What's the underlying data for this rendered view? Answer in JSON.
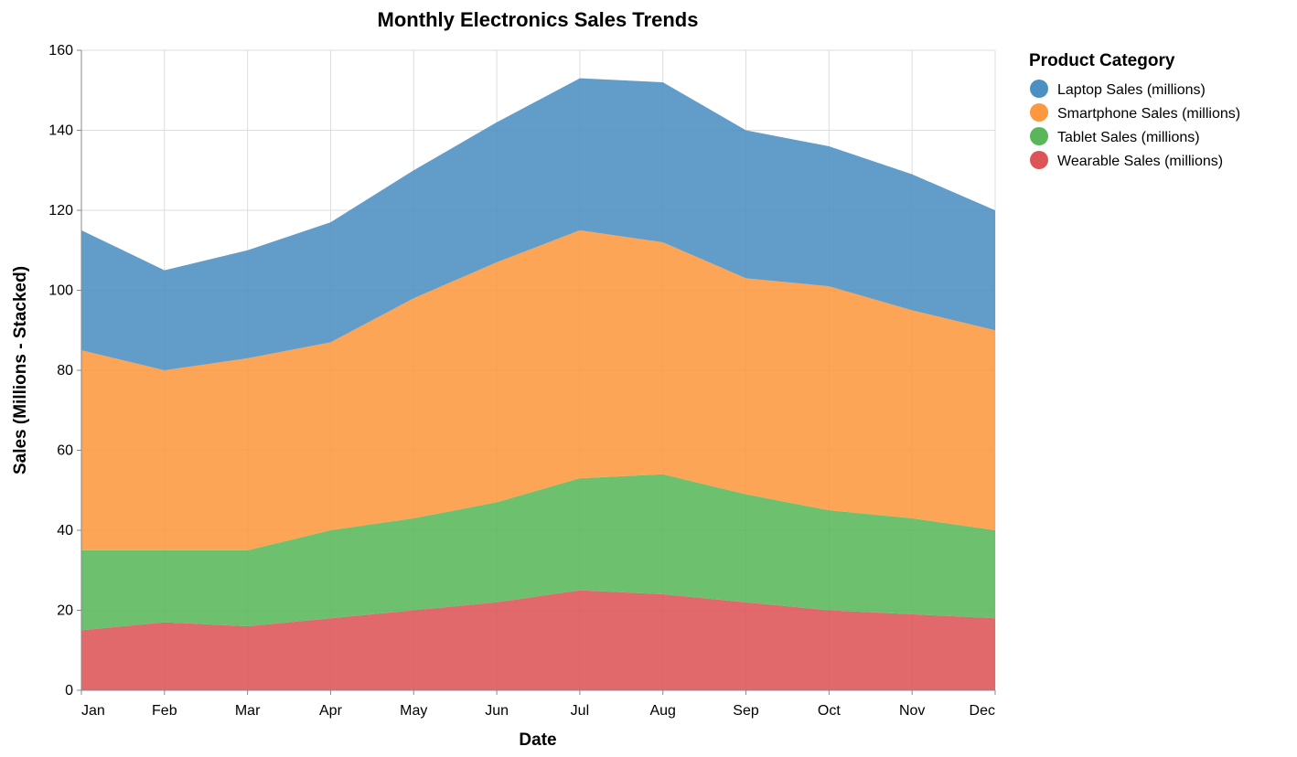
{
  "chart_data": {
    "type": "area",
    "stacked": true,
    "title": "Monthly Electronics Sales Trends",
    "xlabel": "Date",
    "ylabel": "Sales (Millions - Stacked)",
    "ylim": [
      0,
      160
    ],
    "yticks": [
      0,
      20,
      40,
      60,
      80,
      100,
      120,
      140,
      160
    ],
    "grid": true,
    "legend": {
      "title": "Product Category",
      "position": "top-right"
    },
    "categories": [
      "Jan",
      "Feb",
      "Mar",
      "Apr",
      "May",
      "Jun",
      "Jul",
      "Aug",
      "Sep",
      "Oct",
      "Nov",
      "Dec"
    ],
    "series": [
      {
        "name": "Laptop Sales (millions)",
        "color": "#4c8fc3",
        "values": [
          30,
          25,
          27,
          30,
          32,
          35,
          38,
          40,
          37,
          35,
          34,
          30
        ]
      },
      {
        "name": "Smartphone Sales (millions)",
        "color": "#fd9840",
        "values": [
          50,
          45,
          48,
          47,
          55,
          60,
          62,
          58,
          54,
          56,
          52,
          50
        ]
      },
      {
        "name": "Tablet Sales (millions)",
        "color": "#59b75a",
        "values": [
          20,
          18,
          19,
          22,
          23,
          25,
          28,
          30,
          27,
          25,
          24,
          22
        ]
      },
      {
        "name": "Wearable Sales (millions)",
        "color": "#dd5457",
        "values": [
          15,
          17,
          16,
          18,
          20,
          22,
          25,
          24,
          22,
          20,
          19,
          18
        ]
      }
    ]
  }
}
